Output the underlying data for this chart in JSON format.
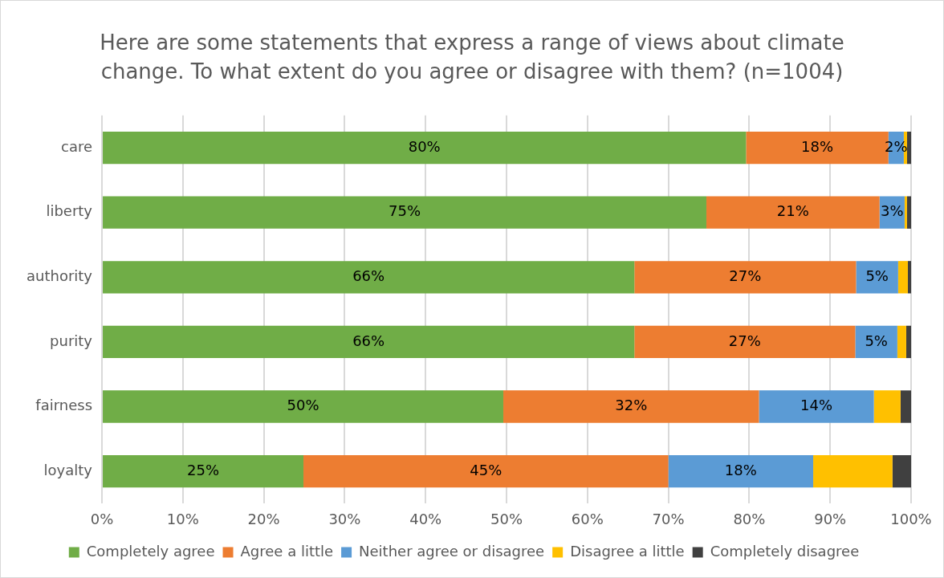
{
  "chart_data": {
    "type": "bar",
    "orientation": "horizontal",
    "stacked": true,
    "title": "Here are some statements that express a range of views about climate change.  To what extent do you agree or disagree with them? (n=1004)",
    "categories": [
      "care",
      "liberty",
      "authority",
      "purity",
      "fairness",
      "loyalty"
    ],
    "series": [
      {
        "name": "Completely agree",
        "color": "#70ad47",
        "values": [
          79.6,
          74.7,
          65.8,
          65.8,
          49.6,
          24.9
        ],
        "value_labels": [
          "80%",
          "75%",
          "66%",
          "66%",
          "50%",
          "25%"
        ]
      },
      {
        "name": "Agree a little",
        "color": "#ed7d31",
        "values": [
          17.6,
          21.4,
          27.4,
          27.3,
          31.6,
          45.1
        ],
        "value_labels": [
          "18%",
          "21%",
          "27%",
          "27%",
          "32%",
          "45%"
        ]
      },
      {
        "name": "Neither agree or disagree",
        "color": "#5b9bd5",
        "values": [
          1.9,
          3.1,
          5.2,
          5.2,
          14.2,
          17.9
        ],
        "value_labels": [
          "2%",
          "3%",
          "5%",
          "5%",
          "14%",
          "18%"
        ]
      },
      {
        "name": "Disagree a little",
        "color": "#ffc000",
        "values": [
          0.4,
          0.3,
          1.2,
          1.1,
          3.3,
          9.8
        ]
      },
      {
        "name": "Completely disagree",
        "color": "#404040",
        "values": [
          0.5,
          0.5,
          0.4,
          0.6,
          1.3,
          2.3
        ]
      }
    ],
    "xlim": [
      0,
      100
    ],
    "xticks": [
      {
        "value": 0,
        "label": "0%"
      },
      {
        "value": 10,
        "label": "10%"
      },
      {
        "value": 20,
        "label": "20%"
      },
      {
        "value": 30,
        "label": "30%"
      },
      {
        "value": 40,
        "label": "40%"
      },
      {
        "value": 50,
        "label": "50%"
      },
      {
        "value": 60,
        "label": "60%"
      },
      {
        "value": 70,
        "label": "70%"
      },
      {
        "value": 80,
        "label": "80%"
      },
      {
        "value": 90,
        "label": "90%"
      },
      {
        "value": 100,
        "label": "100%"
      }
    ],
    "grid": "x",
    "legend": "bottom"
  }
}
